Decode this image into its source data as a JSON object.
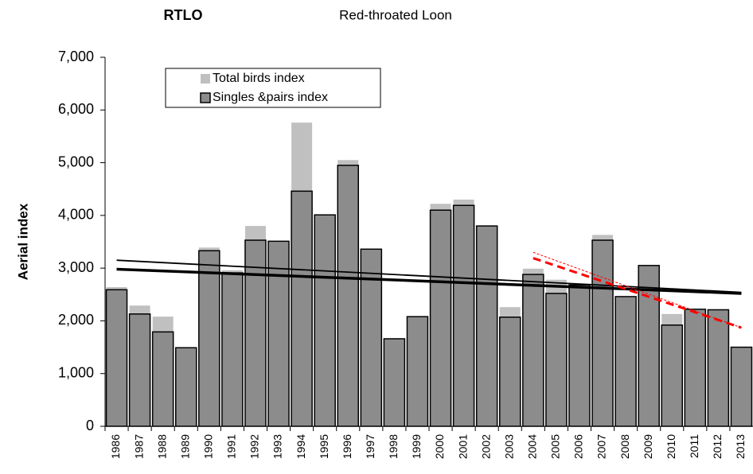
{
  "chart_data": {
    "type": "bar",
    "title": "RTLO",
    "subtitle": "Red-throated Loon",
    "y_label": "Aerial index",
    "categories": [
      "1986",
      "1987",
      "1988",
      "1989",
      "1990",
      "1991",
      "1992",
      "1993",
      "1994",
      "1995",
      "1996",
      "1997",
      "1998",
      "1999",
      "2000",
      "2001",
      "2002",
      "2003",
      "2004",
      "2005",
      "2006",
      "2007",
      "2008",
      "2009",
      "2010",
      "2011",
      "2012",
      "2013"
    ],
    "series": [
      {
        "name": "Total birds  index",
        "color": "#c0c0c0",
        "values": [
          2640,
          2290,
          2080,
          1490,
          3390,
          2960,
          3800,
          3510,
          5760,
          4010,
          5050,
          3360,
          1660,
          2080,
          4220,
          4300,
          3800,
          2260,
          2990,
          2780,
          2680,
          3630,
          2460,
          3050,
          2130,
          2220,
          2210,
          1500
        ]
      },
      {
        "name": "Singles &pairs index",
        "color": "#8c8c8c",
        "values": [
          2590,
          2130,
          1790,
          1490,
          3330,
          2910,
          3530,
          3510,
          4460,
          4010,
          4950,
          3360,
          1660,
          2080,
          4100,
          4190,
          3800,
          2070,
          2880,
          2520,
          2680,
          3530,
          2460,
          3050,
          1920,
          2220,
          2210,
          1500
        ]
      }
    ],
    "trendlines": [
      {
        "x": [
          "1986",
          "2013"
        ],
        "values": [
          2980,
          2520
        ],
        "color": "#000000",
        "width": 3.5
      },
      {
        "x": [
          "1986",
          "2013"
        ],
        "values": [
          3150,
          2540
        ],
        "color": "#000000",
        "width": 1.8
      },
      {
        "x": [
          "2004",
          "2013"
        ],
        "values": [
          3190,
          1870
        ],
        "color": "#ff0000",
        "width": 3,
        "dash": "10 6"
      },
      {
        "x": [
          "2004",
          "2013"
        ],
        "values": [
          3300,
          1870
        ],
        "color": "#ff0000",
        "width": 1,
        "dash": "3 2"
      }
    ],
    "ylim": [
      0,
      7000
    ],
    "yticks": [
      0,
      {
        "value": 1000,
        "label": "1,000"
      },
      {
        "value": 2000,
        "label": "2,000"
      },
      {
        "value": 3000,
        "label": "3,000"
      },
      {
        "value": 4000,
        "label": "4,000"
      },
      {
        "value": 5000,
        "label": "5,000"
      },
      {
        "value": 6000,
        "label": "6,000"
      },
      {
        "value": 7000,
        "label": "7,000"
      }
    ]
  }
}
